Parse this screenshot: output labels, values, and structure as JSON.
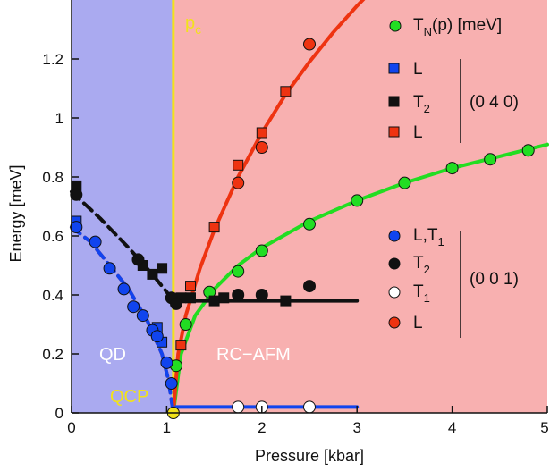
{
  "chart_data": {
    "type": "scatter",
    "xlabel": "Pressure [kbar]",
    "ylabel": "Energy [meV]",
    "xlim": [
      0,
      5
    ],
    "ylim": [
      0,
      1.4
    ],
    "x_ticks": [
      "0",
      "1",
      "2",
      "3",
      "4",
      "5"
    ],
    "y_ticks": [
      "0",
      "0.2",
      "0.4",
      "0.6",
      "0.8",
      "1",
      "1.2"
    ],
    "y_tick_values": [
      0,
      0.2,
      0.4,
      0.6,
      0.8,
      1.0,
      1.2
    ],
    "critical_pressure": 1.07,
    "regions": [
      {
        "label": "QD",
        "x_range": [
          0,
          1.07
        ],
        "color": "#aaaaf0"
      },
      {
        "label": "RC−AFM",
        "x_range": [
          1.07,
          5
        ],
        "color": "#f8b0b0"
      }
    ],
    "annotations": {
      "pc": {
        "main": "p",
        "sub": "c"
      },
      "qcp": "QCP"
    },
    "legend": {
      "tn": {
        "pre": "T",
        "sub": "N",
        "post": "(p) [meV]",
        "color": "#22dd22",
        "marker": "circle"
      },
      "group_040": {
        "label": "(0 4 0)",
        "entries": [
          {
            "pre": "L",
            "sub": "",
            "color": "#1144ee",
            "marker": "square"
          },
          {
            "pre": "T",
            "sub": "2",
            "color": "#111111",
            "marker": "square"
          },
          {
            "pre": "L",
            "sub": "",
            "color": "#ee3311",
            "marker": "square"
          }
        ]
      },
      "group_001": {
        "label": "(0 0 1)",
        "entries": [
          {
            "pre": "L,T",
            "sub": "1",
            "color": "#1144ee",
            "marker": "circle"
          },
          {
            "pre": "T",
            "sub": "2",
            "color": "#111111",
            "marker": "circle"
          },
          {
            "pre": "T",
            "sub": "1",
            "color": "#ffffff",
            "marker": "circle"
          },
          {
            "pre": "L",
            "sub": "",
            "color": "#ee3311",
            "marker": "circle"
          }
        ]
      }
    },
    "series": [
      {
        "name": "TN(p)",
        "marker": "circle",
        "color": "#22dd22",
        "x": [
          1.1,
          1.2,
          1.45,
          1.75,
          2.0,
          2.5,
          3.0,
          3.5,
          4.0,
          4.4,
          4.8
        ],
        "y": [
          0.16,
          0.3,
          0.41,
          0.48,
          0.55,
          0.64,
          0.72,
          0.78,
          0.83,
          0.86,
          0.89
        ]
      },
      {
        "name": "L (0 4 0)",
        "marker": "square",
        "color": "#1144ee",
        "x": [
          0.05,
          0.9,
          0.95
        ],
        "y": [
          0.65,
          0.29,
          0.24
        ]
      },
      {
        "name": "T2 (0 4 0)",
        "marker": "square",
        "color": "#111111",
        "x": [
          0.05,
          0.75,
          0.85,
          0.95,
          1.15,
          1.25,
          1.5,
          1.6,
          2.25
        ],
        "y": [
          0.77,
          0.5,
          0.47,
          0.49,
          0.39,
          0.39,
          0.38,
          0.39,
          0.38
        ]
      },
      {
        "name": "L (0 4 0) red",
        "marker": "square",
        "color": "#ee3311",
        "x": [
          1.15,
          1.25,
          1.5,
          1.75,
          2.0,
          2.25
        ],
        "y": [
          0.23,
          0.43,
          0.63,
          0.84,
          0.95,
          1.09
        ]
      },
      {
        "name": "L,T1 (0 0 1)",
        "marker": "circle",
        "color": "#1144ee",
        "x": [
          0.05,
          0.25,
          0.4,
          0.55,
          0.65,
          0.75,
          0.85,
          0.9,
          1.0,
          1.05
        ],
        "y": [
          0.63,
          0.58,
          0.49,
          0.42,
          0.36,
          0.33,
          0.28,
          0.26,
          0.17,
          0.1
        ]
      },
      {
        "name": "T2 (0 0 1)",
        "marker": "circle",
        "color": "#111111",
        "x": [
          0.05,
          0.7,
          1.05,
          1.1,
          1.75,
          2.0,
          2.5
        ],
        "y": [
          0.74,
          0.52,
          0.39,
          0.37,
          0.4,
          0.4,
          0.43
        ]
      },
      {
        "name": "T1 (0 0 1)",
        "marker": "circle",
        "color": "#ffffff",
        "x": [
          1.75,
          2.0,
          2.5
        ],
        "y": [
          0.02,
          0.02,
          0.02
        ]
      },
      {
        "name": "L (0 0 1)",
        "marker": "circle",
        "color": "#ee3311",
        "x": [
          1.75,
          2.0,
          2.5
        ],
        "y": [
          0.78,
          0.9,
          1.25
        ]
      },
      {
        "name": "QCP point",
        "marker": "circle",
        "color": "#f2e21a",
        "x": [
          1.07
        ],
        "y": [
          0.0
        ]
      }
    ],
    "fit_curves": [
      {
        "name": "green fit",
        "color": "#22dd22",
        "dashed": false,
        "x": [
          1.07,
          1.15,
          1.3,
          1.5,
          1.75,
          2.0,
          2.5,
          3.0,
          3.5,
          4.0,
          4.5,
          5.0
        ],
        "y": [
          0.0,
          0.2,
          0.33,
          0.42,
          0.5,
          0.56,
          0.65,
          0.72,
          0.78,
          0.83,
          0.87,
          0.91
        ]
      },
      {
        "name": "red fit",
        "color": "#ee3311",
        "dashed": false,
        "x": [
          1.07,
          1.12,
          1.2,
          1.35,
          1.5,
          1.75,
          2.0,
          2.25,
          2.5,
          2.75,
          3.0,
          3.15
        ],
        "y": [
          0.0,
          0.2,
          0.33,
          0.49,
          0.62,
          0.8,
          0.95,
          1.08,
          1.19,
          1.29,
          1.38,
          1.43
        ]
      },
      {
        "name": "red dashed low",
        "color": "#ee3311",
        "dashed": true,
        "x": [
          0.0,
          0.2,
          0.4,
          0.6,
          0.8,
          0.95,
          1.02,
          1.07
        ],
        "y": [
          0.63,
          0.58,
          0.5,
          0.42,
          0.31,
          0.2,
          0.11,
          0.0
        ]
      },
      {
        "name": "blue low",
        "color": "#1144ee",
        "dashed": true,
        "x": [
          0.0,
          0.2,
          0.4,
          0.6,
          0.8,
          0.95,
          1.02,
          1.07
        ],
        "y": [
          0.63,
          0.58,
          0.5,
          0.42,
          0.31,
          0.2,
          0.11,
          0.0
        ]
      },
      {
        "name": "black dashed",
        "color": "#111111",
        "dashed": true,
        "x": [
          0.0,
          0.3,
          0.6,
          0.85,
          1.0,
          1.07
        ],
        "y": [
          0.75,
          0.66,
          0.56,
          0.47,
          0.41,
          0.38
        ]
      },
      {
        "name": "black flat",
        "color": "#111111",
        "dashed": false,
        "x": [
          1.07,
          3.0
        ],
        "y": [
          0.38,
          0.38
        ]
      },
      {
        "name": "blue flat",
        "color": "#1144ee",
        "dashed": false,
        "x": [
          1.1,
          3.0
        ],
        "y": [
          0.02,
          0.02
        ]
      }
    ]
  }
}
